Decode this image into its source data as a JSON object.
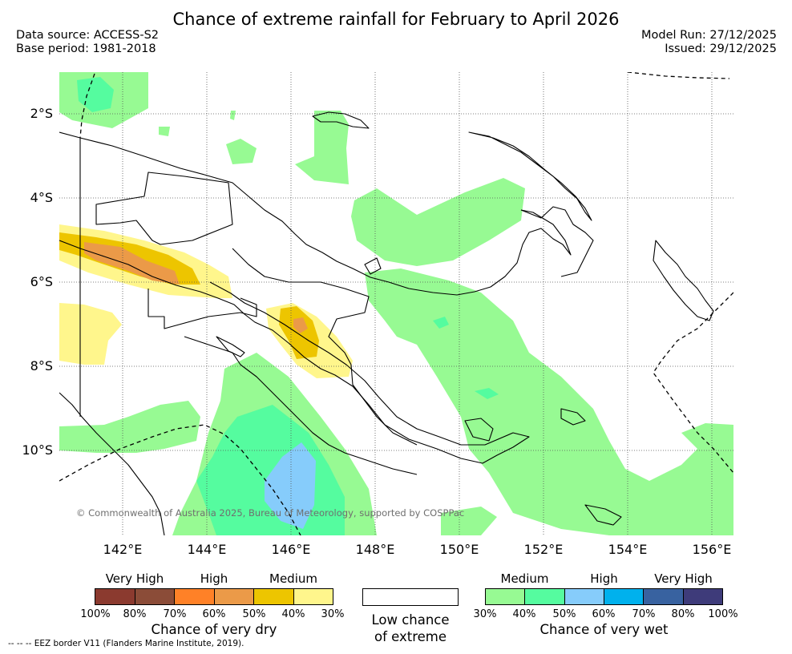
{
  "title": "Chance of extreme rainfall for February to April 2026",
  "data_source": "Data source: ACCESS-S2",
  "base_period": "Base period: 1981-2018",
  "model_run": "Model Run: 27/12/2025",
  "issued": "Issued: 29/12/2025",
  "lat_labels": [
    "2°S",
    "4°S",
    "6°S",
    "8°S",
    "10°S"
  ],
  "lon_labels": [
    "142°E",
    "144°E",
    "146°E",
    "148°E",
    "150°E",
    "152°E",
    "154°E",
    "156°E"
  ],
  "copyright": "© Commonwealth of Australia 2025, Bureau of Meteorology, supported by COSPPac",
  "legend": {
    "dry": {
      "categories": [
        "Very High",
        "High",
        "Medium"
      ],
      "ticks": [
        "100%",
        "80%",
        "70%",
        "60%",
        "50%",
        "40%",
        "30%"
      ],
      "colors": [
        "#8b3a2f",
        "#8b4c38",
        "#ff8127",
        "#eb9a48",
        "#edc500",
        "#fff68c"
      ],
      "title": "Chance of very dry"
    },
    "low": {
      "title_line1": "Low chance",
      "title_line2": "of extreme",
      "color": "#ffffff"
    },
    "wet": {
      "categories": [
        "Medium",
        "High",
        "Very High"
      ],
      "ticks": [
        "30%",
        "40%",
        "50%",
        "60%",
        "70%",
        "80%",
        "100%"
      ],
      "colors": [
        "#97fa93",
        "#55fc9f",
        "#86ccfb",
        "#00b1ed",
        "#3862a0",
        "#3e3b7a"
      ],
      "title": "Chance of very wet"
    }
  },
  "footer": "--  --  -- EEZ border V11 (Flanders Marine Institute, 2019)."
}
